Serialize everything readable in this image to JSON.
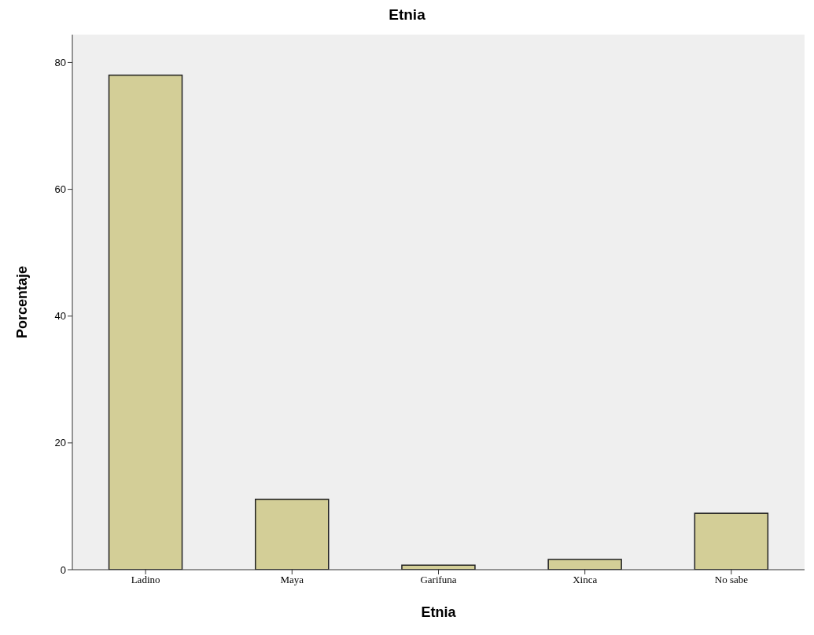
{
  "chart_data": {
    "type": "bar",
    "title": "Etnia",
    "xlabel": "Etnia",
    "ylabel": "Porcentaje",
    "categories": [
      "Ladino",
      "Maya",
      "Garifuna",
      "Xinca",
      "No sabe"
    ],
    "values": [
      78,
      11.1,
      0.7,
      1.6,
      8.9
    ],
    "color": "#d3ce97",
    "ylim": [
      0,
      84.4
    ],
    "yticks": [
      0,
      20,
      40,
      60,
      80
    ],
    "grid": false,
    "legend": false
  }
}
